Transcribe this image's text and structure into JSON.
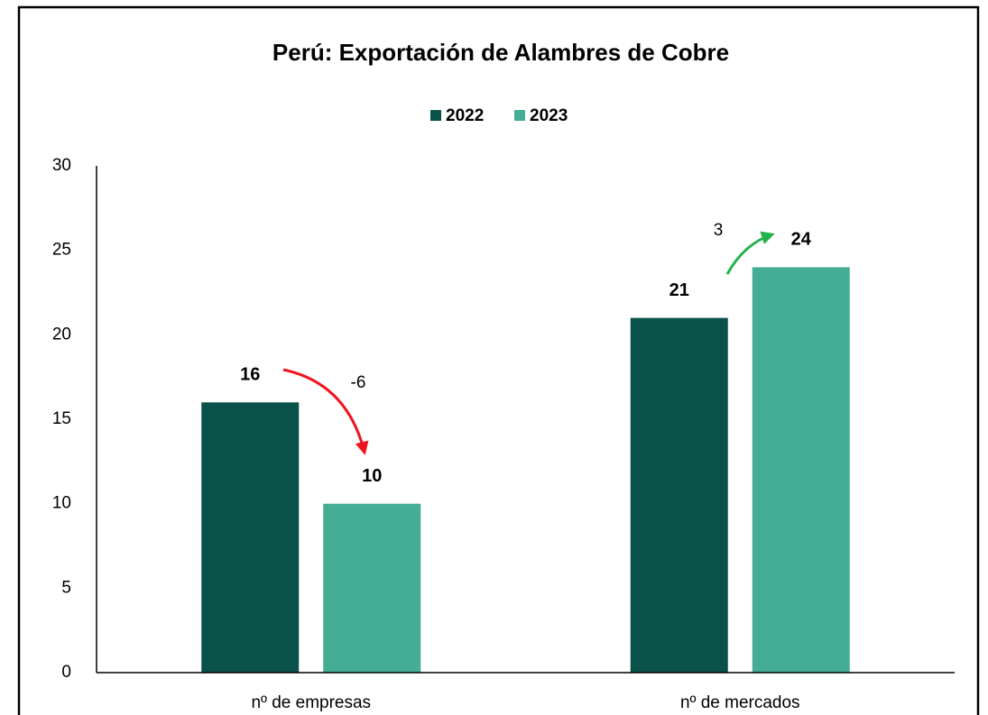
{
  "chart_data": {
    "type": "bar",
    "title": "Perú: Exportación de Alambres de Cobre",
    "categories": [
      "nº de empresas",
      "nº de mercados"
    ],
    "series": [
      {
        "name": "2022",
        "color": "#0a5149",
        "values": [
          16,
          21
        ]
      },
      {
        "name": "2023",
        "color": "#45ad94",
        "values": [
          10,
          24
        ]
      }
    ],
    "ylim": [
      0,
      30
    ],
    "yticks": [
      0,
      5,
      10,
      15,
      20,
      25,
      30
    ],
    "grid": false,
    "legend": "top",
    "annotations": [
      "-6",
      "3"
    ]
  }
}
